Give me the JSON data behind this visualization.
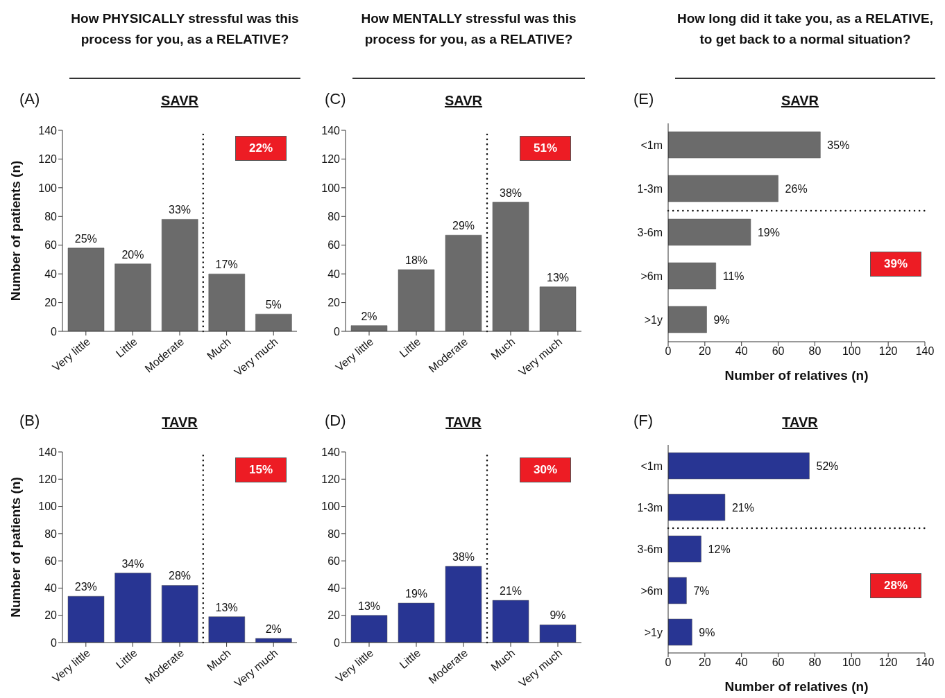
{
  "chart_data": [
    {
      "type": "bar",
      "title": "How PHYSICALLY stressful was this process for you, as a RELATIVE?",
      "subtitle": "SAVR",
      "ylabel": "Number of patients (n)",
      "categories": [
        "Very little",
        "Little",
        "Moderate",
        "Much",
        "Very much"
      ],
      "values": [
        58,
        47,
        78,
        40,
        12
      ],
      "color": "#6b6b6b",
      "ylim": [
        0,
        140
      ],
      "yticks": [
        0,
        20,
        40,
        60,
        80,
        100,
        120,
        140
      ],
      "annotations": [
        "(A)",
        "22%",
        {
          "text": "25%",
          "x": "Very little",
          "y": 58
        },
        {
          "text": "20%",
          "x": "Little",
          "y": 47
        },
        {
          "text": "33%",
          "x": "Moderate",
          "y": 78
        },
        {
          "text": "17%",
          "x": "Much",
          "y": 40
        },
        {
          "text": "5%",
          "x": "Very much",
          "y": 12
        }
      ]
    },
    {
      "type": "bar",
      "title": "How MENTALLY stressful was this process for you, as a RELATIVE?",
      "subtitle": "SAVR",
      "categories": [
        "Very little",
        "Little",
        "Moderate",
        "Much",
        "Very much"
      ],
      "values": [
        4,
        43,
        67,
        90,
        31
      ],
      "color": "#6b6b6b",
      "ylim": [
        0,
        140
      ],
      "yticks": [
        0,
        20,
        40,
        60,
        80,
        100,
        120,
        140
      ],
      "annotations": [
        "(C)",
        "51%",
        {
          "text": "2%",
          "x": "Very little",
          "y": 4
        },
        {
          "text": "18%",
          "x": "Little",
          "y": 43
        },
        {
          "text": "29%",
          "x": "Moderate",
          "y": 67
        },
        {
          "text": "38%",
          "x": "Much",
          "y": 90
        },
        {
          "text": "13%",
          "x": "Very much",
          "y": 31
        }
      ]
    },
    {
      "type": "bar",
      "orientation": "horizontal",
      "title": "How long did it take you, as a RELATIVE, to get back to a normal situation?",
      "subtitle": "SAVR",
      "xlabel": "Number of relatives (n)",
      "categories": [
        "<1m",
        "1-3m",
        "3-6m",
        ">6m",
        ">1y"
      ],
      "values": [
        83,
        60,
        45,
        26,
        21
      ],
      "color": "#6b6b6b",
      "xlim": [
        0,
        140
      ],
      "xticks": [
        0,
        20,
        40,
        60,
        80,
        100,
        120,
        140
      ],
      "annotations": [
        "(E)",
        "39%",
        {
          "text": "35%",
          "x": 83,
          "y": "<1m"
        },
        {
          "text": "26%",
          "x": 60,
          "y": "1-3m"
        },
        {
          "text": "19%",
          "x": 45,
          "y": "3-6m"
        },
        {
          "text": "11%",
          "x": 26,
          "y": ">6m"
        },
        {
          "text": "9%",
          "x": 21,
          "y": ">1y"
        }
      ]
    },
    {
      "type": "bar",
      "title": "TAVR",
      "ylabel": "Number of patients (n)",
      "categories": [
        "Very little",
        "Little",
        "Moderate",
        "Much",
        "Very much"
      ],
      "values": [
        34,
        51,
        42,
        19,
        3
      ],
      "color": "#283593",
      "ylim": [
        0,
        140
      ],
      "yticks": [
        0,
        20,
        40,
        60,
        80,
        100,
        120,
        140
      ],
      "annotations": [
        "(B)",
        "15%",
        {
          "text": "23%",
          "x": "Very little",
          "y": 34
        },
        {
          "text": "34%",
          "x": "Little",
          "y": 51
        },
        {
          "text": "28%",
          "x": "Moderate",
          "y": 42
        },
        {
          "text": "13%",
          "x": "Much",
          "y": 19
        },
        {
          "text": "2%",
          "x": "Very much",
          "y": 3
        }
      ]
    },
    {
      "type": "bar",
      "title": "TAVR",
      "categories": [
        "Very little",
        "Little",
        "Moderate",
        "Much",
        "Very much"
      ],
      "values": [
        20,
        29,
        56,
        31,
        13
      ],
      "color": "#283593",
      "ylim": [
        0,
        140
      ],
      "yticks": [
        0,
        20,
        40,
        60,
        80,
        100,
        120,
        140
      ],
      "annotations": [
        "(D)",
        "30%",
        {
          "text": "13%",
          "x": "Very little",
          "y": 20
        },
        {
          "text": "19%",
          "x": "Little",
          "y": 29
        },
        {
          "text": "38%",
          "x": "Moderate",
          "y": 56
        },
        {
          "text": "21%",
          "x": "Much",
          "y": 31
        },
        {
          "text": "9%",
          "x": "Very much",
          "y": 13
        }
      ]
    },
    {
      "type": "bar",
      "orientation": "horizontal",
      "title": "TAVR",
      "xlabel": "Number of relatives (n)",
      "categories": [
        "<1m",
        "1-3m",
        "3-6m",
        ">6m",
        ">1y"
      ],
      "values": [
        77,
        31,
        18,
        10,
        13
      ],
      "color": "#283593",
      "xlim": [
        0,
        140
      ],
      "xticks": [
        0,
        20,
        40,
        60,
        80,
        100,
        120,
        140
      ],
      "annotations": [
        "(F)",
        "28%",
        {
          "text": "52%",
          "x": 77,
          "y": "<1m"
        },
        {
          "text": "21%",
          "x": 31,
          "y": "1-3m"
        },
        {
          "text": "12%",
          "x": 18,
          "y": "3-6m"
        },
        {
          "text": "7%",
          "x": 10,
          "y": ">6m"
        },
        {
          "text": "9%",
          "x": 13,
          "y": ">1y"
        }
      ]
    }
  ]
}
